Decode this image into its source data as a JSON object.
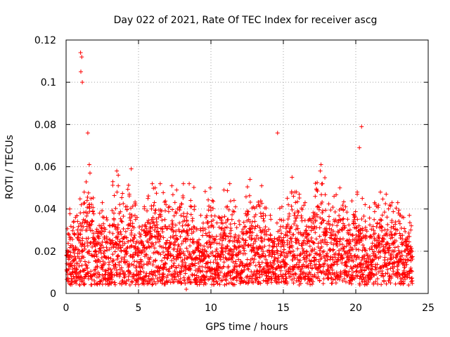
{
  "chart_data": {
    "type": "scatter",
    "title": "Day 022 of 2021, Rate Of TEC Index for receiver ascg",
    "xlabel": "GPS time / hours",
    "ylabel": "ROTI / TECUs",
    "xlim": [
      0,
      25
    ],
    "ylim": [
      0,
      0.12
    ],
    "xticks": [
      0,
      5,
      10,
      15,
      20,
      25
    ],
    "xtick_labels": [
      "0",
      "5",
      "10",
      "15",
      "20",
      "25"
    ],
    "yticks": [
      0,
      0.02,
      0.04,
      0.06,
      0.08,
      0.1,
      0.12
    ],
    "ytick_labels": [
      "0",
      "0.02",
      "0.04",
      "0.06",
      "0.08",
      "0.1",
      "0.12"
    ],
    "grid": true,
    "marker": "+",
    "color": "#ff0000",
    "series": [
      {
        "name": "ROTI",
        "x": [
          0.1,
          0.2,
          0.3,
          0.4,
          0.5,
          0.6,
          0.7,
          0.8,
          0.9,
          1.0,
          1.05,
          1.1,
          1.2,
          1.3,
          1.4,
          1.5,
          1.6,
          1.7,
          1.8,
          1.9,
          2.0,
          2.2,
          2.4,
          2.6,
          2.8,
          3.0,
          3.2,
          3.4,
          3.6,
          3.8,
          4.0,
          4.2,
          4.4,
          4.6,
          4.8,
          5.0,
          5.2,
          5.4,
          5.6,
          5.8,
          5.9,
          6.0,
          6.1,
          6.2,
          6.4,
          6.6,
          6.8,
          7.0,
          7.2,
          7.4,
          7.6,
          7.8,
          8.0,
          8.2,
          8.4,
          8.6,
          8.8,
          9.0,
          9.2,
          9.4,
          9.6,
          9.8,
          10.0,
          10.2,
          10.4,
          10.6,
          10.8,
          11.0,
          11.2,
          11.4,
          11.6,
          11.8,
          12.0,
          12.2,
          12.4,
          12.6,
          12.8,
          13.0,
          13.2,
          13.4,
          13.6,
          13.8,
          14.0,
          14.2,
          14.4,
          14.6,
          14.8,
          15.0,
          15.2,
          15.4,
          15.6,
          15.8,
          16.0,
          16.2,
          16.4,
          16.6,
          16.8,
          17.0,
          17.2,
          17.4,
          17.6,
          17.8,
          18.0,
          18.2,
          18.4,
          18.6,
          18.8,
          19.0,
          19.2,
          19.4,
          19.6,
          19.8,
          20.0,
          20.2,
          20.3,
          20.4,
          20.6,
          20.8,
          21.0,
          21.2,
          21.4,
          21.6,
          21.8,
          22.0,
          22.2,
          22.4,
          22.6,
          22.8,
          23.0,
          23.2,
          23.4,
          23.6,
          23.8,
          0.15,
          0.35,
          0.55,
          0.75,
          0.95,
          1.15,
          1.35,
          1.55,
          1.75,
          1.95,
          2.3,
          2.7,
          3.1,
          3.5,
          3.9,
          4.3,
          4.7,
          5.1,
          5.5,
          5.7,
          6.05,
          6.3,
          6.7,
          7.1,
          7.5,
          7.9,
          8.3,
          8.7,
          9.1,
          9.5,
          9.9,
          10.3,
          10.7,
          11.1,
          11.5,
          11.9,
          12.3,
          12.7,
          13.1,
          13.5,
          13.9,
          14.3,
          14.7,
          15.1,
          15.5,
          15.9,
          16.3,
          16.7,
          17.1,
          17.5,
          17.9,
          18.3,
          18.7,
          19.1,
          19.5,
          19.9,
          20.35,
          20.7,
          21.1,
          21.5,
          21.9,
          22.3,
          22.7,
          23.1,
          23.5,
          23.9,
          0.25,
          0.65,
          1.05,
          1.25,
          1.45,
          1.85,
          2.5,
          3.3,
          4.1,
          4.9,
          5.65,
          5.95,
          6.15,
          6.9,
          7.7,
          8.5,
          9.3,
          10.1,
          10.9,
          11.7,
          12.5,
          13.3,
          14.1,
          14.9,
          15.7,
          16.5,
          17.3,
          17.55,
          17.7,
          18.5,
          19.3,
          20.1,
          20.25,
          20.45,
          21.3,
          22.1,
          22.9,
          23.7,
          1.0,
          1.02,
          1.08,
          1.12,
          1.5,
          1.6,
          1.65,
          14.6,
          15.6,
          16.1,
          17.2,
          17.6,
          20.1,
          20.4,
          21.7,
          22.5,
          9.95,
          12.7,
          8.1,
          3.5,
          3.6,
          4.5,
          6.5,
          7.3,
          11.3,
          13.5,
          15.8,
          18.9,
          23.3
        ],
        "y": [
          0.011,
          0.014,
          0.018,
          0.013,
          0.022,
          0.016,
          0.012,
          0.019,
          0.025,
          0.028,
          0.032,
          0.03,
          0.035,
          0.021,
          0.026,
          0.038,
          0.031,
          0.024,
          0.022,
          0.018,
          0.02,
          0.016,
          0.023,
          0.019,
          0.017,
          0.021,
          0.015,
          0.024,
          0.018,
          0.02,
          0.016,
          0.019,
          0.022,
          0.017,
          0.021,
          0.018,
          0.024,
          0.02,
          0.028,
          0.033,
          0.04,
          0.036,
          0.03,
          0.024,
          0.019,
          0.022,
          0.017,
          0.02,
          0.018,
          0.021,
          0.016,
          0.019,
          0.015,
          0.018,
          0.02,
          0.017,
          0.019,
          0.021,
          0.018,
          0.02,
          0.017,
          0.022,
          0.019,
          0.024,
          0.021,
          0.018,
          0.02,
          0.017,
          0.019,
          0.016,
          0.021,
          0.018,
          0.02,
          0.022,
          0.025,
          0.023,
          0.02,
          0.018,
          0.021,
          0.017,
          0.019,
          0.016,
          0.018,
          0.02,
          0.017,
          0.015,
          0.018,
          0.016,
          0.019,
          0.02,
          0.022,
          0.018,
          0.016,
          0.019,
          0.017,
          0.02,
          0.018,
          0.021,
          0.019,
          0.022,
          0.024,
          0.02,
          0.018,
          0.021,
          0.017,
          0.019,
          0.016,
          0.018,
          0.02,
          0.017,
          0.019,
          0.021,
          0.024,
          0.027,
          0.03,
          0.026,
          0.021,
          0.018,
          0.016,
          0.019,
          0.017,
          0.02,
          0.023,
          0.019,
          0.016,
          0.018,
          0.02,
          0.017,
          0.015,
          0.018,
          0.016,
          0.019,
          0.017,
          0.006,
          0.009,
          0.007,
          0.008,
          0.01,
          0.006,
          0.009,
          0.007,
          0.008,
          0.006,
          0.009,
          0.007,
          0.008,
          0.01,
          0.006,
          0.008,
          0.007,
          0.009,
          0.006,
          0.008,
          0.01,
          0.007,
          0.009,
          0.006,
          0.008,
          0.007,
          0.002,
          0.009,
          0.006,
          0.008,
          0.007,
          0.009,
          0.006,
          0.008,
          0.007,
          0.009,
          0.006,
          0.008,
          0.007,
          0.01,
          0.006,
          0.009,
          0.007,
          0.005,
          0.008,
          0.006,
          0.009,
          0.007,
          0.008,
          0.006,
          0.009,
          0.007,
          0.008,
          0.006,
          0.009,
          0.007,
          0.008,
          0.006,
          0.009,
          0.007,
          0.008,
          0.006,
          0.009,
          0.007,
          0.008,
          0.006,
          0.04,
          0.036,
          0.042,
          0.048,
          0.044,
          0.039,
          0.043,
          0.038,
          0.041,
          0.036,
          0.045,
          0.052,
          0.05,
          0.042,
          0.04,
          0.052,
          0.037,
          0.044,
          0.049,
          0.041,
          0.039,
          0.042,
          0.037,
          0.041,
          0.046,
          0.043,
          0.049,
          0.058,
          0.052,
          0.046,
          0.041,
          0.047,
          0.069,
          0.045,
          0.043,
          0.047,
          0.043,
          0.037,
          0.114,
          0.105,
          0.112,
          0.1,
          0.076,
          0.061,
          0.057,
          0.076,
          0.055,
          0.047,
          0.046,
          0.061,
          0.048,
          0.079,
          0.048,
          0.043,
          0.05,
          0.054,
          0.052,
          0.058,
          0.051,
          0.059,
          0.052,
          0.051,
          0.052,
          0.051,
          0.048,
          0.05,
          0.036
        ]
      }
    ]
  }
}
